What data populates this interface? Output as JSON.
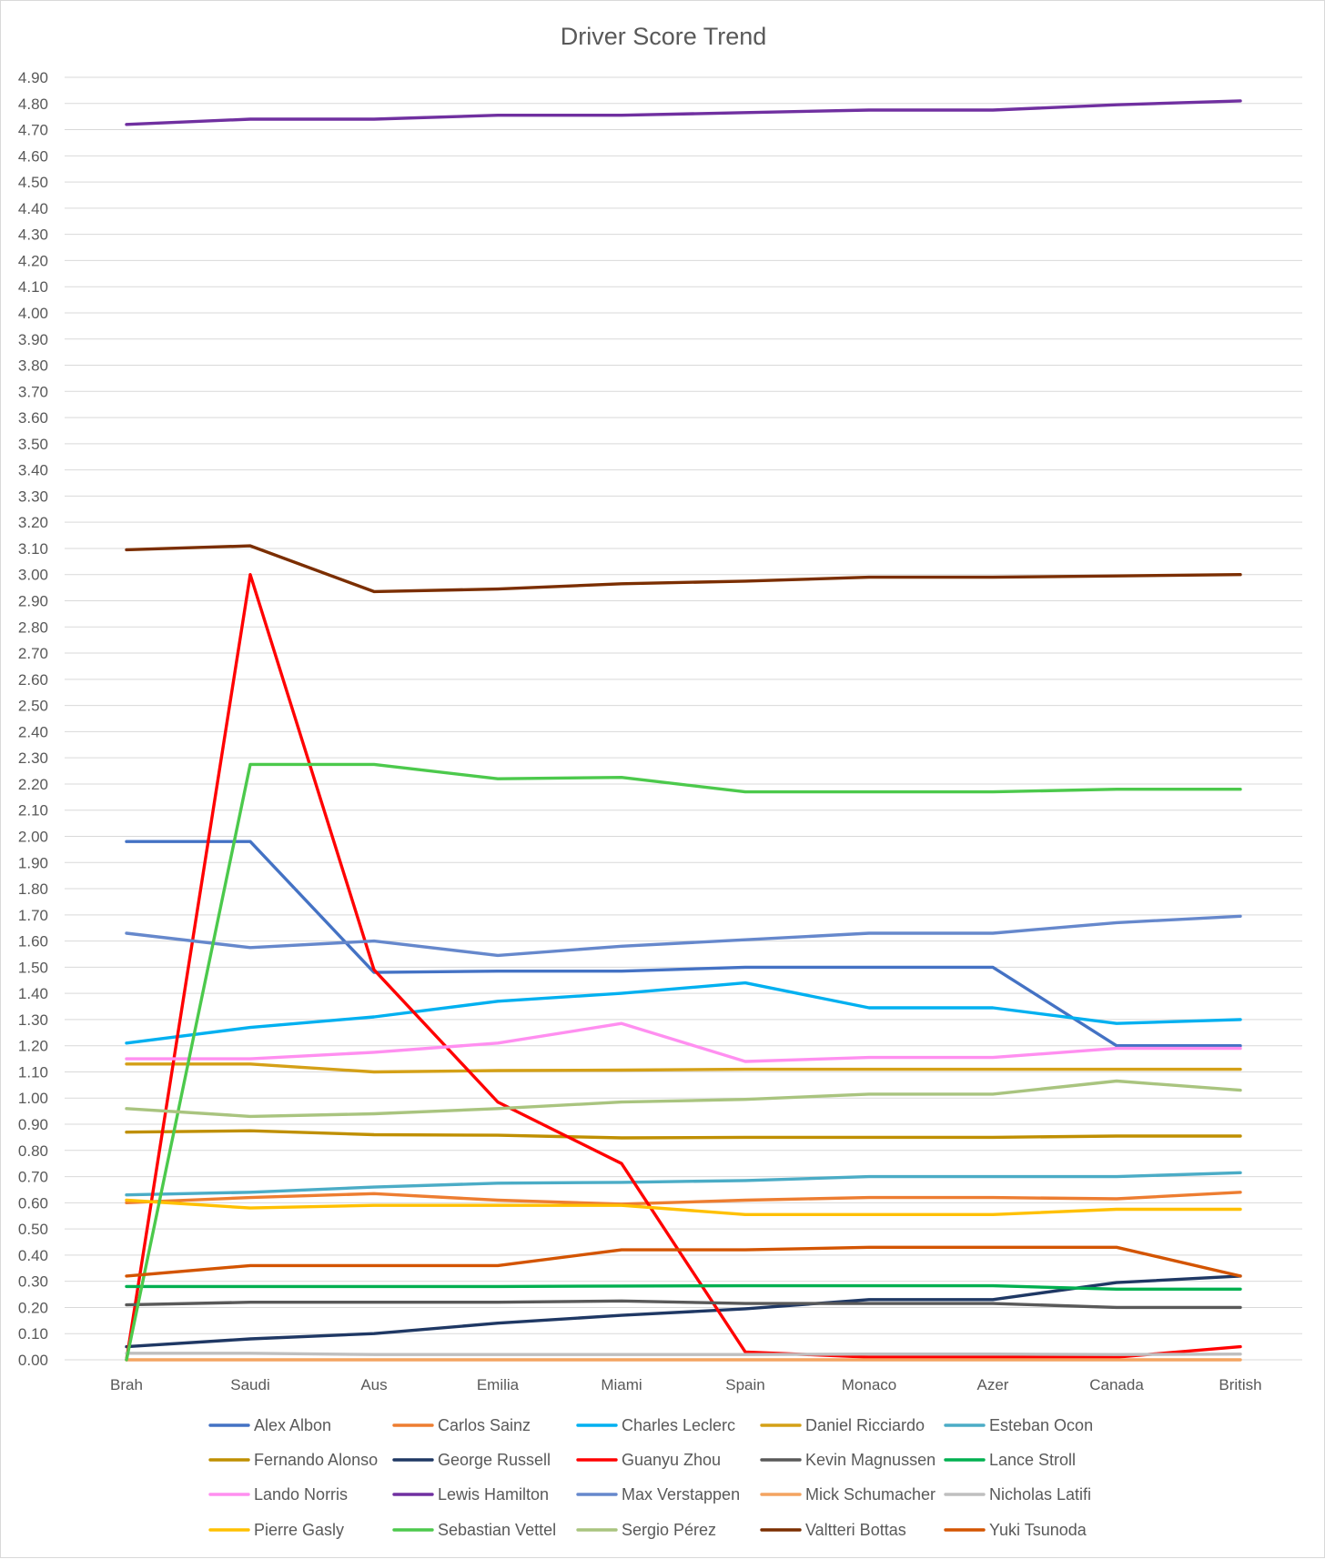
{
  "chart_data": {
    "type": "line",
    "title": "Driver Score Trend",
    "xlabel": "",
    "ylabel": "",
    "ylim": [
      0,
      4.9
    ],
    "ytick_step": 0.1,
    "grid": true,
    "legend_position": "bottom",
    "categories": [
      "Brah",
      "Saudi",
      "Aus",
      "Emilia",
      "Miami",
      "Spain",
      "Monaco",
      "Azer",
      "Canada",
      "British"
    ],
    "series": [
      {
        "name": "Alex Albon",
        "color": "#4472c4",
        "values": [
          1.98,
          1.98,
          1.48,
          1.485,
          1.485,
          1.5,
          1.5,
          1.5,
          1.2,
          1.2
        ]
      },
      {
        "name": "Carlos Sainz",
        "color": "#ed7d31",
        "values": [
          0.6,
          0.62,
          0.635,
          0.61,
          0.595,
          0.61,
          0.62,
          0.62,
          0.615,
          0.64
        ]
      },
      {
        "name": "Charles Leclerc",
        "color": "#00b0f0",
        "values": [
          1.21,
          1.27,
          1.31,
          1.37,
          1.4,
          1.44,
          1.345,
          1.345,
          1.285,
          1.3
        ]
      },
      {
        "name": "Daniel Ricciardo",
        "color": "#d4a017",
        "values": [
          1.13,
          1.13,
          1.1,
          1.105,
          1.107,
          1.11,
          1.11,
          1.11,
          1.11,
          1.11
        ]
      },
      {
        "name": "Esteban Ocon",
        "color": "#4bacc6",
        "values": [
          0.63,
          0.64,
          0.66,
          0.675,
          0.678,
          0.685,
          0.7,
          0.7,
          0.7,
          0.715
        ]
      },
      {
        "name": "Fernando Alonso",
        "color": "#bf8f00",
        "values": [
          0.87,
          0.875,
          0.86,
          0.858,
          0.848,
          0.85,
          0.85,
          0.85,
          0.855,
          0.855
        ]
      },
      {
        "name": "George Russell",
        "color": "#1f3864",
        "values": [
          0.05,
          0.08,
          0.1,
          0.14,
          0.17,
          0.195,
          0.23,
          0.23,
          0.295,
          0.32
        ]
      },
      {
        "name": "Guanyu Zhou",
        "color": "#ff0000",
        "values": [
          0.0,
          3.0,
          1.49,
          0.985,
          0.75,
          0.03,
          0.01,
          0.01,
          0.01,
          0.05
        ]
      },
      {
        "name": "Kevin Magnussen",
        "color": "#595959",
        "values": [
          0.21,
          0.22,
          0.22,
          0.22,
          0.225,
          0.215,
          0.215,
          0.215,
          0.2,
          0.2
        ]
      },
      {
        "name": "Lance Stroll",
        "color": "#00b050",
        "values": [
          0.28,
          0.28,
          0.28,
          0.28,
          0.282,
          0.283,
          0.283,
          0.283,
          0.27,
          0.27
        ]
      },
      {
        "name": "Lando Norris",
        "color": "#ff8ff0",
        "values": [
          1.15,
          1.15,
          1.175,
          1.21,
          1.285,
          1.14,
          1.155,
          1.155,
          1.19,
          1.19
        ]
      },
      {
        "name": "Lewis Hamilton",
        "color": "#7030a0",
        "values": [
          4.72,
          4.74,
          4.74,
          4.755,
          4.755,
          4.765,
          4.775,
          4.775,
          4.795,
          4.81
        ]
      },
      {
        "name": "Max Verstappen",
        "color": "#6688cc",
        "values": [
          1.63,
          1.575,
          1.6,
          1.545,
          1.58,
          1.605,
          1.63,
          1.63,
          1.67,
          1.695
        ]
      },
      {
        "name": "Mick Schumacher",
        "color": "#f4a460",
        "values": [
          0.0,
          0.0,
          0.0,
          0.0,
          0.0,
          0.0,
          0.0,
          0.0,
          0.0,
          0.0
        ]
      },
      {
        "name": "Nicholas Latifi",
        "color": "#bfbfbf",
        "values": [
          0.025,
          0.025,
          0.02,
          0.02,
          0.02,
          0.02,
          0.022,
          0.022,
          0.02,
          0.022
        ]
      },
      {
        "name": "Pierre Gasly",
        "color": "#ffc000",
        "values": [
          0.61,
          0.58,
          0.59,
          0.59,
          0.59,
          0.555,
          0.555,
          0.555,
          0.575,
          0.575
        ]
      },
      {
        "name": "Sebastian Vettel",
        "color": "#4cc94c",
        "values": [
          0.0,
          2.275,
          2.275,
          2.22,
          2.225,
          2.17,
          2.17,
          2.17,
          2.18,
          2.18
        ]
      },
      {
        "name": "Sergio Pérez",
        "color": "#a9c47f",
        "values": [
          0.96,
          0.93,
          0.94,
          0.96,
          0.985,
          0.995,
          1.015,
          1.015,
          1.065,
          1.03
        ]
      },
      {
        "name": "Valtteri Bottas",
        "color": "#7b2e00",
        "values": [
          3.095,
          3.11,
          2.935,
          2.945,
          2.965,
          2.975,
          2.99,
          2.99,
          2.995,
          3.0
        ]
      },
      {
        "name": "Yuki Tsunoda",
        "color": "#d35400",
        "values": [
          0.32,
          0.36,
          0.36,
          0.36,
          0.42,
          0.42,
          0.43,
          0.43,
          0.43,
          0.32
        ]
      }
    ]
  }
}
